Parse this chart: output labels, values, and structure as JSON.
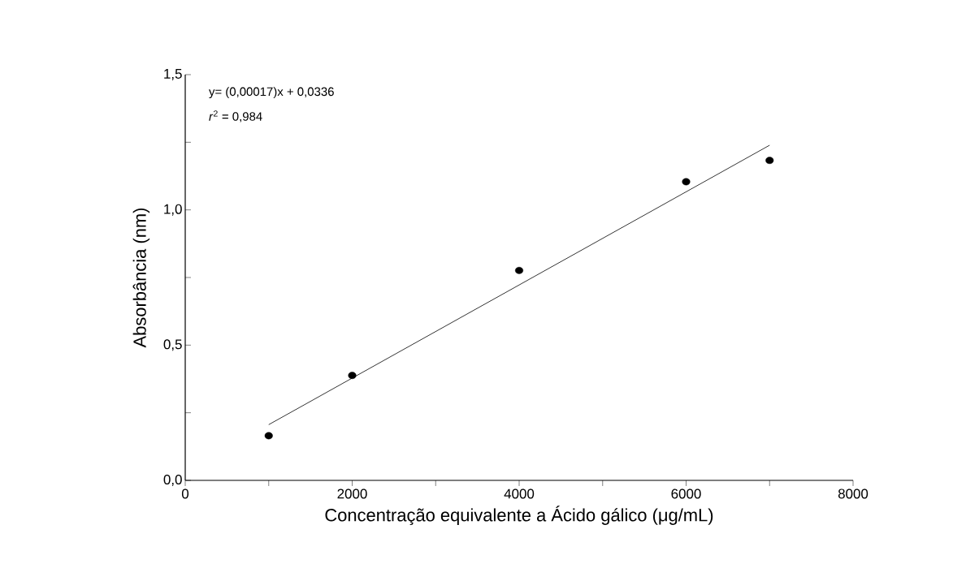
{
  "chart_data": {
    "type": "scatter",
    "xlabel": "Concentração equivalente a Ácido gálico (μg/mL)",
    "ylabel": "Absorbância (nm)",
    "annotations": [
      "y= (0,00017)x + 0,0336",
      "*r*$^{2}$ = 0,984"
    ],
    "series": [
      {
        "color": "#000000",
        "marker": "circle",
        "x": [
          1000,
          2000,
          4000,
          6000,
          7000
        ],
        "values": [
          0.165,
          0.388,
          0.776,
          1.104,
          1.183
        ]
      },
      {
        "type": "line",
        "color": "#000000",
        "marker": "none",
        "line_style": "solid",
        "x": [
          1000,
          7000
        ],
        "values": [
          0.206,
          1.239
        ]
      }
    ],
    "xlim": [
      0,
      8000
    ],
    "xticks": [
      0,
      2000,
      4000,
      6000,
      8000
    ],
    "ylim": [
      0,
      1.5
    ],
    "yticks": [
      {
        "value": 0,
        "label": "0,0"
      },
      {
        "value": 0.5,
        "label": "0,5"
      },
      {
        "value": 1,
        "label": "1,0"
      },
      {
        "value": 1.5,
        "label": "1,5"
      }
    ],
    "grid": false
  }
}
